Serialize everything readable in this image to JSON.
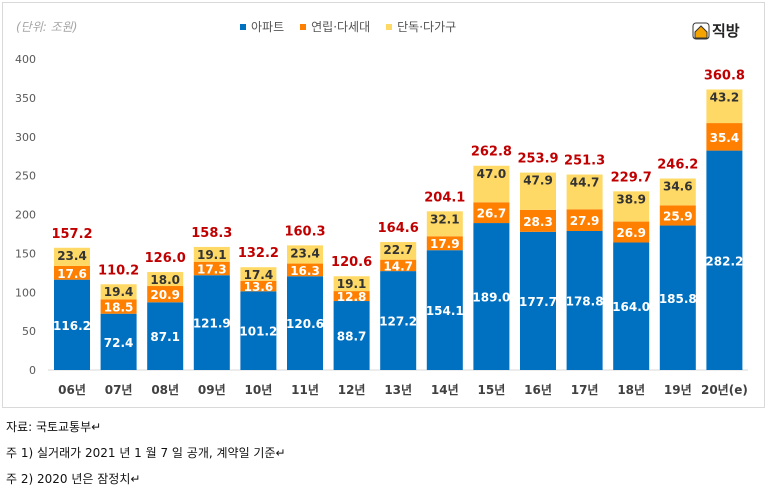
{
  "chart_data": {
    "type": "bar",
    "stacked": true,
    "unit_label": "(단위: 조원)",
    "categories": [
      "06년",
      "07년",
      "08년",
      "09년",
      "10년",
      "11년",
      "12년",
      "13년",
      "14년",
      "15년",
      "16년",
      "17년",
      "18년",
      "19년",
      "20년(e)"
    ],
    "series": [
      {
        "name": "아파트",
        "color": "#0070c0",
        "values": [
          116.2,
          72.4,
          87.1,
          121.9,
          101.2,
          120.6,
          88.7,
          127.2,
          154.1,
          189.0,
          177.7,
          178.8,
          164.0,
          185.8,
          282.2
        ]
      },
      {
        "name": "연립·다세대",
        "color": "#ff7f00",
        "values": [
          17.6,
          18.5,
          20.9,
          17.3,
          13.6,
          16.3,
          12.8,
          14.7,
          17.9,
          26.7,
          28.3,
          27.9,
          26.9,
          25.9,
          35.4
        ]
      },
      {
        "name": "단독·다가구",
        "color": "#ffd966",
        "values": [
          23.4,
          19.4,
          18.0,
          19.1,
          17.4,
          23.4,
          19.1,
          22.7,
          32.1,
          47.0,
          47.9,
          44.7,
          38.9,
          34.6,
          43.2
        ]
      }
    ],
    "totals": [
      157.2,
      110.2,
      126.0,
      158.3,
      132.2,
      160.3,
      120.6,
      164.6,
      204.1,
      262.8,
      253.9,
      251.3,
      229.7,
      246.2,
      360.8
    ],
    "total_color": "#c00000",
    "ylim": [
      0,
      400
    ],
    "yticks": [
      0,
      50,
      100,
      150,
      200,
      250,
      300,
      350,
      400
    ],
    "grid": false,
    "legend_position": "top"
  },
  "logo": "직방",
  "notes": [
    "자료: 국토교통부↵",
    "주 1) 실거래가 2021 년 1 월 7 일 공개, 계약일 기준↵",
    "주 2) 2020 년은 잠정치↵"
  ]
}
